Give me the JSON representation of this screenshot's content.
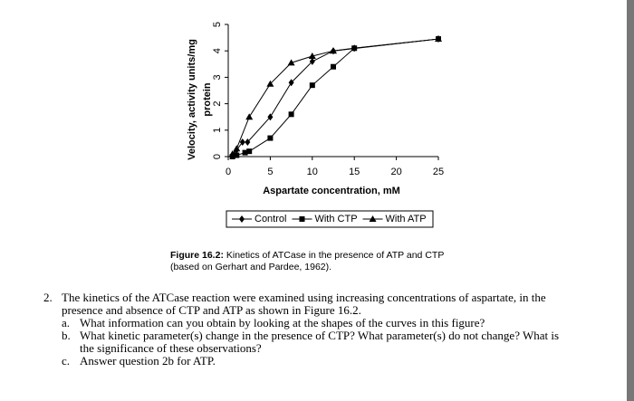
{
  "chart_data": {
    "type": "line",
    "x_label": "Aspartate concentration, mM",
    "y_label": [
      "Velocity, activity units/mg",
      "protein"
    ],
    "xlim": [
      0,
      25
    ],
    "ylim": [
      0,
      5
    ],
    "xticks": [
      0,
      5,
      10,
      15,
      20,
      25
    ],
    "yticks": [
      0,
      1,
      2,
      3,
      4,
      5
    ],
    "series": [
      {
        "name": "Control",
        "color": "#000000",
        "marker": "diamond",
        "x": [
          0.5,
          1,
          1.7,
          2.3,
          5,
          7.5,
          10,
          12.5,
          15,
          25
        ],
        "values": [
          0.05,
          0.25,
          0.55,
          0.55,
          1.5,
          2.8,
          3.6,
          4.0,
          4.1,
          4.45
        ]
      },
      {
        "name": "With CTP",
        "color": "#000000",
        "marker": "square",
        "x": [
          0.5,
          1,
          2,
          2.5,
          5,
          7.5,
          10,
          12.5,
          15,
          25
        ],
        "values": [
          0.0,
          0.05,
          0.15,
          0.2,
          0.7,
          1.6,
          2.7,
          3.4,
          4.1,
          4.45
        ]
      },
      {
        "name": "With ATP",
        "color": "#000000",
        "marker": "triangle",
        "x": [
          0.5,
          1,
          2.5,
          5,
          7.5,
          10,
          12.5,
          25
        ],
        "values": [
          0.1,
          0.3,
          1.5,
          2.75,
          3.55,
          3.8,
          4.0,
          4.45
        ]
      }
    ]
  },
  "document": {
    "caption": {
      "label": "Figure 16.2:",
      "text": "Kinetics of ATCase in the presence of ATP and CTP (based on Gerhart and Pardee, 1962)."
    },
    "question": {
      "number": "2.",
      "text": "The kinetics of the ATCase reaction were examined using increasing concentrations of aspartate, in the presence and absence of CTP and ATP as shown in Figure 16.2.",
      "items": [
        {
          "label": "a.",
          "text": "What information can you obtain by looking at the shapes of the curves in this figure?"
        },
        {
          "label": "b.",
          "text": "What kinetic parameter(s) change in the presence of CTP? What parameter(s) do not change? What is the significance of these observations?"
        },
        {
          "label": "c.",
          "text": "Answer question 2b for ATP."
        }
      ]
    }
  }
}
